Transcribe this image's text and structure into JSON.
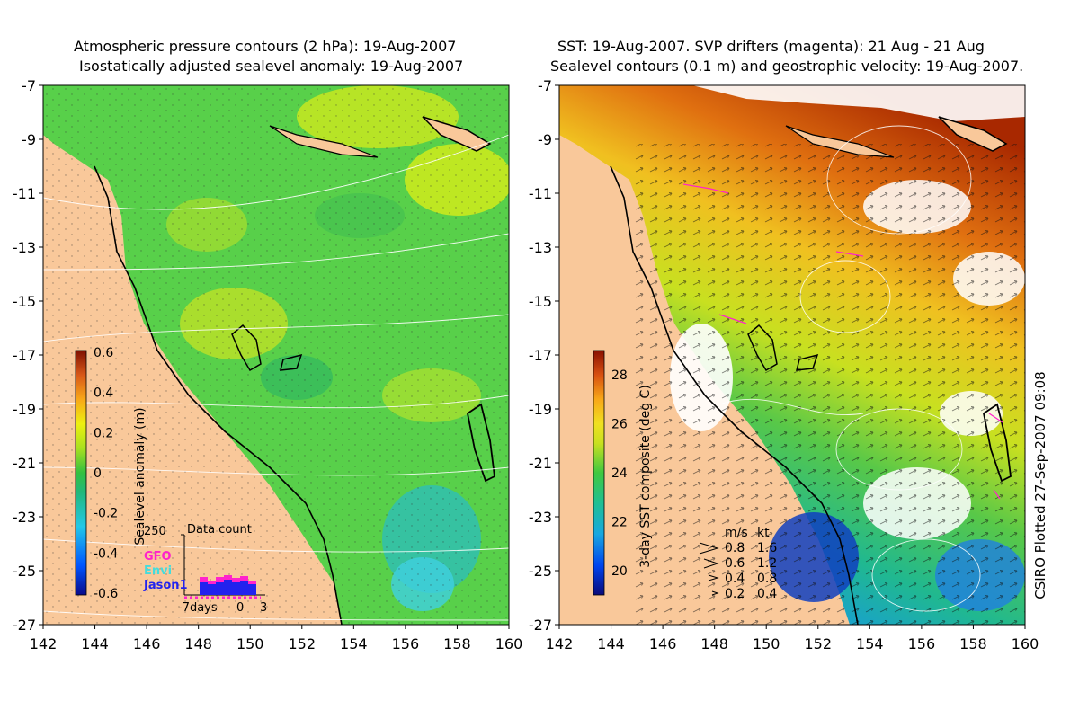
{
  "left_panel": {
    "title_line1": "Atmospheric pressure contours (2 hPa): 19-Aug-2007",
    "title_line2": "Isostatically adjusted sealevel anomaly: 19-Aug-2007",
    "colorbar": {
      "label": "Sealevel anomaly (m)",
      "ticks": [
        "0.6",
        "0.4",
        "0.2",
        "0",
        "-0.2",
        "-0.4",
        "-0.6"
      ]
    },
    "data_count": {
      "title": "Data count",
      "ymax_label": "250",
      "satellites": [
        {
          "name": "GFO",
          "color": "#ff22cc"
        },
        {
          "name": "Envi",
          "color": "#44dddd"
        },
        {
          "name": "Jason1",
          "color": "#2222ee"
        }
      ],
      "x_labels": [
        "-7days",
        "0",
        "3"
      ]
    }
  },
  "right_panel": {
    "title_line1": "SST: 19-Aug-2007. SVP drifters (magenta): 21 Aug - 21 Aug",
    "title_line2": "Sealevel contours (0.1 m) and geostrophic velocity: 19-Aug-2007.",
    "colorbar": {
      "label": "3-day SST composite (deg C)",
      "ticks": [
        "28",
        "26",
        "24",
        "22",
        "20"
      ]
    },
    "velocity_legend": {
      "header_ms": "m/s",
      "header_kt": "kt",
      "rows": [
        {
          "ms": "0.8",
          "kt": "1.6"
        },
        {
          "ms": "0.6",
          "kt": "1.2"
        },
        {
          "ms": "0.4",
          "kt": "0.8"
        },
        {
          "ms": "0.2",
          "kt": "0.4"
        }
      ]
    }
  },
  "axes": {
    "x_ticks": [
      "142",
      "144",
      "146",
      "148",
      "150",
      "152",
      "154",
      "156",
      "158",
      "160"
    ],
    "y_ticks": [
      "-7",
      "-9",
      "-11",
      "-13",
      "-15",
      "-17",
      "-19",
      "-21",
      "-23",
      "-25",
      "-27"
    ]
  },
  "credit": "CSIRO Plotted 27-Sep-2007 09:08",
  "colors": {
    "land": "#f9c89a",
    "sla_main": "#58d04a",
    "sst_warm": "#b83a00",
    "sst_cool": "#18a0c8"
  }
}
